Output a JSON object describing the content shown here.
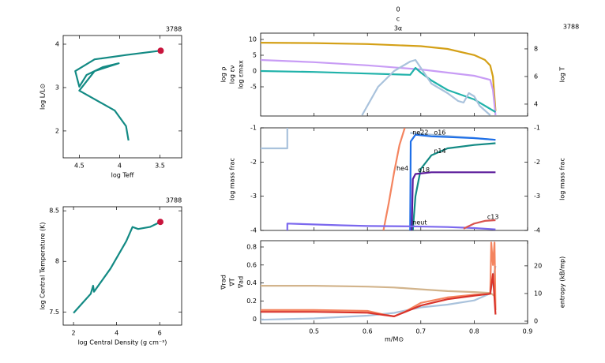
{
  "chart_data": [
    {
      "type": "line",
      "corner_label": "3788",
      "xlabel": "log Teff",
      "ylabel": "log L/L⊙",
      "xlim": [
        4.7,
        3.23
      ],
      "ylim": [
        1.38,
        4.2
      ],
      "xticks": [
        4.5,
        4,
        3.5
      ],
      "yticks": [
        4,
        3,
        2
      ],
      "series": [
        {
          "color": "#138a84",
          "x": [
            3.89,
            3.92,
            4.06,
            4.5,
            4.31,
            4.01,
            4.21,
            4.41,
            4.5,
            4.55,
            4.31,
            3.92,
            3.49
          ],
          "values": [
            1.78,
            2.11,
            2.47,
            2.93,
            3.38,
            3.56,
            3.47,
            3.29,
            3.02,
            3.38,
            3.65,
            3.75,
            3.85
          ]
        },
        {
          "color": "#c8143c",
          "style": "dot",
          "x": [
            3.49
          ],
          "values": [
            3.85
          ]
        }
      ]
    },
    {
      "type": "line",
      "corner_label": "3788",
      "xlabel": "log Central Density (g cm⁻³)",
      "ylabel": "log Central Temperature (K)",
      "xlim": [
        1.52,
        7.02
      ],
      "ylim": [
        7.37,
        8.54
      ],
      "xticks": [
        2,
        4,
        6
      ],
      "yticks": [
        8.5,
        8,
        7.5
      ],
      "series": [
        {
          "color": "#138a84",
          "x": [
            2.0,
            2.8,
            2.91,
            2.95,
            3.72,
            4.45,
            4.74,
            5.0,
            5.55,
            6.03
          ],
          "values": [
            7.49,
            7.68,
            7.76,
            7.7,
            7.93,
            8.2,
            8.34,
            8.32,
            8.34,
            8.39
          ]
        },
        {
          "color": "#c8143c",
          "style": "dot",
          "x": [
            6.03
          ],
          "values": [
            8.39
          ]
        }
      ]
    },
    {
      "type": "line",
      "corner_label": "3788",
      "annotations": [
        "0",
        "c",
        "3α"
      ],
      "ylabels": [
        {
          "text": "log ρ",
          "color": "#b77ff0"
        },
        {
          "text": "log εν",
          "color": "#20b2aa"
        },
        {
          "text": "log εmax",
          "color": "#a9c2dc"
        }
      ],
      "y2label": {
        "text": "log T",
        "color": "#d4a017"
      },
      "xlim": [
        0.4,
        0.9
      ],
      "ylim": [
        -14.25,
        12
      ],
      "y2lim": [
        3.14,
        9.14
      ],
      "xticks": [
        0.5,
        0.6,
        0.7,
        0.8,
        0.9
      ],
      "xtick_labels": false,
      "yticks": [
        10,
        5,
        0,
        -5
      ],
      "y2ticks": [
        8,
        6,
        4
      ],
      "series": [
        {
          "color": "#d4a017",
          "axis": "y2",
          "x": [
            0.4,
            0.5,
            0.6,
            0.7,
            0.75,
            0.8,
            0.82,
            0.83,
            0.835,
            0.838,
            0.84
          ],
          "values": [
            8.45,
            8.42,
            8.35,
            8.2,
            8.0,
            7.55,
            7.2,
            6.8,
            6.0,
            4.5,
            3.5
          ]
        },
        {
          "color": "#c89cf5",
          "x": [
            0.4,
            0.5,
            0.6,
            0.7,
            0.8,
            0.83,
            0.835,
            0.84
          ],
          "values": [
            3.5,
            2.8,
            1.8,
            0.5,
            -1.5,
            -2.8,
            -6,
            -14
          ]
        },
        {
          "color": "#20b2aa",
          "x": [
            0.4,
            0.5,
            0.6,
            0.68,
            0.69,
            0.7,
            0.72,
            0.75,
            0.8,
            0.84
          ],
          "values": [
            0,
            -0.3,
            -0.8,
            -1.2,
            1,
            -0.5,
            -3,
            -6,
            -9,
            -13
          ]
        },
        {
          "color": "#a9c2dc",
          "x": [
            0.59,
            0.62,
            0.65,
            0.68,
            0.69,
            0.7,
            0.72,
            0.75,
            0.77,
            0.78,
            0.79,
            0.8,
            0.81,
            0.83
          ],
          "values": [
            -14,
            -5,
            0,
            3,
            3.5,
            1,
            -4,
            -7,
            -9.5,
            -10,
            -7,
            -8,
            -11,
            -14
          ]
        }
      ]
    },
    {
      "type": "line",
      "ylabels": [
        {
          "text": "log mass frac",
          "color": "#000000"
        }
      ],
      "y2label": {
        "text": "log mass frac",
        "color": "#000000"
      },
      "xlim": [
        0.4,
        0.9
      ],
      "ylim": [
        -4,
        -1
      ],
      "y2lim": [
        -4,
        -1
      ],
      "xticks": [
        0.5,
        0.6,
        0.7,
        0.8,
        0.9
      ],
      "xtick_labels": false,
      "yticks": [
        -1,
        -2,
        -3,
        -4
      ],
      "y2ticks": [
        -1,
        -2,
        -3,
        -4
      ],
      "series": [
        {
          "name": "ne22",
          "color": "#a9c2dc",
          "x": [
            0.4,
            0.45,
            0.45,
            0.46,
            0.68,
            0.72,
            0.8,
            0.84
          ],
          "values": [
            -1.6,
            -1.6,
            -1,
            null,
            -1.15,
            -1.2,
            -1.3,
            -1.35
          ]
        },
        {
          "name": "he4",
          "color": "#f4845f",
          "x": [
            0.63,
            0.64,
            0.65,
            0.66,
            0.67
          ],
          "values": [
            -4,
            -3.2,
            -2.3,
            -1.5,
            -1
          ]
        },
        {
          "name": "o16",
          "color": "#1e6fe8",
          "x": [
            0.68,
            0.681,
            0.69,
            0.72,
            0.8,
            0.84
          ],
          "values": [
            -4,
            -1.4,
            -1.2,
            -1.25,
            -1.3,
            -1.35
          ]
        },
        {
          "name": "n14",
          "color": "#138a84",
          "x": [
            0.685,
            0.69,
            0.7,
            0.72,
            0.75,
            0.8,
            0.84
          ],
          "values": [
            -4,
            -3,
            -2.2,
            -1.8,
            -1.6,
            -1.5,
            -1.45
          ]
        },
        {
          "name": "o18",
          "color": "#5a1a9a",
          "x": [
            0.683,
            0.685,
            0.69,
            0.72,
            0.84
          ],
          "values": [
            -4,
            -2.5,
            -2.35,
            -2.3,
            -2.3
          ]
        },
        {
          "name": "neut",
          "color": "#7b68ee",
          "x": [
            0.45,
            0.45,
            0.55,
            0.6,
            0.68,
            0.75,
            0.8,
            0.84
          ],
          "values": [
            -4,
            -3.8,
            -3.85,
            -3.87,
            -3.88,
            -3.9,
            -3.93,
            -3.97
          ]
        },
        {
          "name": "c13",
          "color": "#d9534f",
          "x": [
            0.78,
            0.8,
            0.82,
            0.84
          ],
          "values": [
            -3.95,
            -3.8,
            -3.72,
            -3.7
          ]
        }
      ]
    },
    {
      "type": "line",
      "xlabel": "m/M⊙",
      "ylabels": [
        {
          "text": "∇rad",
          "color": "#f4845f"
        },
        {
          "text": "∇T",
          "color": "#d9342b"
        },
        {
          "text": "∇ad",
          "color": "#d2b48c"
        }
      ],
      "y2label": {
        "text": "entropy (kB/mp)",
        "color": "#000000"
      },
      "xlim": [
        0.4,
        0.9
      ],
      "ylim": [
        -0.05,
        0.87
      ],
      "y2lim": [
        -0.86,
        29.1
      ],
      "xticks": [
        0.5,
        0.6,
        0.7,
        0.8,
        0.9
      ],
      "yticks": [
        0.8,
        0.6,
        0.4,
        0.2,
        0
      ],
      "y2ticks": [
        20,
        10,
        0
      ],
      "series": [
        {
          "color": "#d2b48c",
          "x": [
            0.4,
            0.5,
            0.6,
            0.65,
            0.7,
            0.75,
            0.8,
            0.83,
            0.84
          ],
          "values": [
            0.37,
            0.37,
            0.36,
            0.35,
            0.33,
            0.31,
            0.3,
            0.29,
            0.25
          ]
        },
        {
          "color": "#a9c2dc",
          "axis": "y2",
          "x": [
            0.4,
            0.5,
            0.6,
            0.65,
            0.7,
            0.75,
            0.8,
            0.83,
            0.84
          ],
          "values": [
            0.5,
            1,
            2,
            3,
            5,
            6,
            7.5,
            10,
            20
          ]
        },
        {
          "color": "#f4845f",
          "x": [
            0.4,
            0.5,
            0.6,
            0.63,
            0.65,
            0.67,
            0.7,
            0.75,
            0.8,
            0.83,
            0.832,
            0.835,
            0.838,
            0.84
          ],
          "values": [
            0.1,
            0.1,
            0.09,
            0.05,
            0.03,
            0.08,
            0.18,
            0.24,
            0.27,
            0.28,
            0.85,
            0.6,
            0.85,
            0.1
          ]
        },
        {
          "color": "#d9342b",
          "x": [
            0.4,
            0.5,
            0.6,
            0.65,
            0.7,
            0.75,
            0.8,
            0.83,
            0.835,
            0.84
          ],
          "values": [
            0.08,
            0.08,
            0.07,
            0.03,
            0.15,
            0.22,
            0.26,
            0.28,
            0.5,
            0.05
          ]
        }
      ]
    }
  ]
}
